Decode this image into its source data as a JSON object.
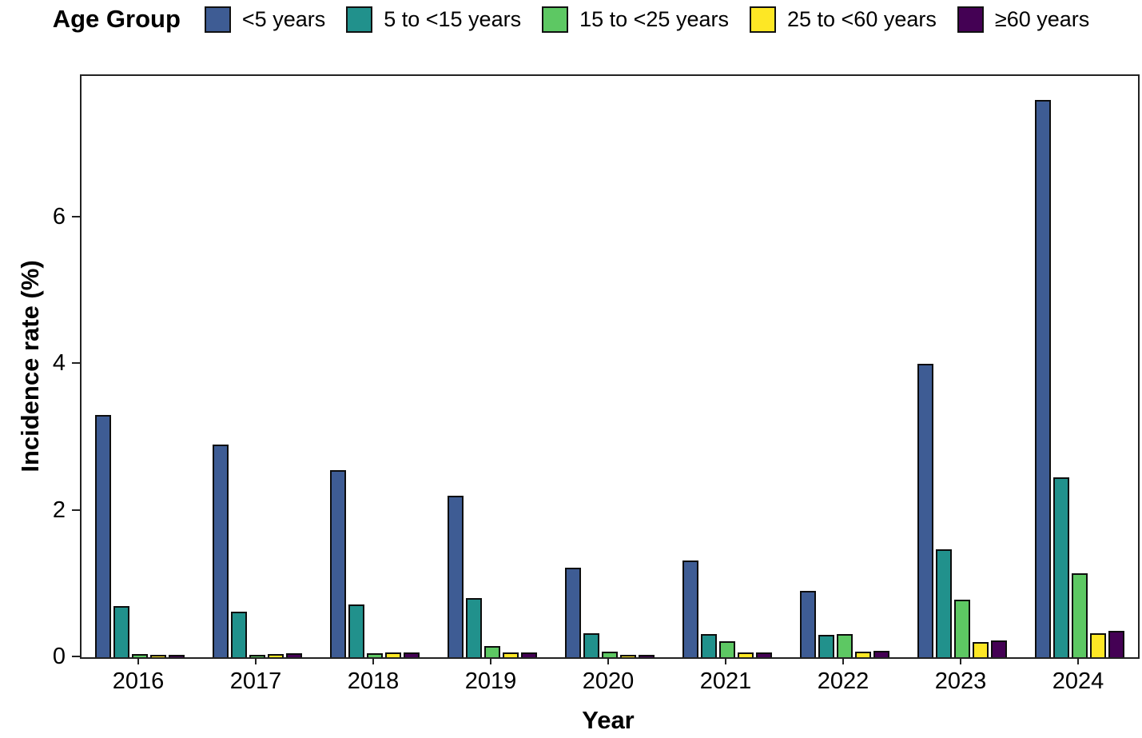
{
  "legend": {
    "title": "Age Group",
    "items": [
      {
        "label": "<5 years",
        "color": "#3E5C94"
      },
      {
        "label": "5 to <15 years",
        "color": "#21918C"
      },
      {
        "label": "15 to <25 years",
        "color": "#5DC863"
      },
      {
        "label": "25 to <60 years",
        "color": "#FDE725"
      },
      {
        "label": "≥60 years",
        "color": "#440154"
      }
    ]
  },
  "chart_data": {
    "type": "bar",
    "title": "",
    "xlabel": "Year",
    "ylabel": "Incidence rate (%)",
    "categories": [
      "2016",
      "2017",
      "2018",
      "2019",
      "2020",
      "2021",
      "2022",
      "2023",
      "2024"
    ],
    "series": [
      {
        "name": "<5 years",
        "color": "#3E5C94",
        "values": [
          3.3,
          2.9,
          2.55,
          2.2,
          1.22,
          1.32,
          0.9,
          4.0,
          7.6
        ]
      },
      {
        "name": "5 to <15 years",
        "color": "#21918C",
        "values": [
          0.7,
          0.62,
          0.72,
          0.81,
          0.33,
          0.32,
          0.3,
          1.47,
          2.45
        ]
      },
      {
        "name": "15 to <25 years",
        "color": "#5DC863",
        "values": [
          0.04,
          0.03,
          0.05,
          0.15,
          0.08,
          0.22,
          0.32,
          0.78,
          1.15
        ]
      },
      {
        "name": "25 to <60 years",
        "color": "#FDE725",
        "values": [
          0.03,
          0.04,
          0.06,
          0.07,
          0.02,
          0.06,
          0.08,
          0.21,
          0.33
        ]
      },
      {
        "name": "≥60 years",
        "color": "#440154",
        "values": [
          0.03,
          0.05,
          0.07,
          0.07,
          0.03,
          0.06,
          0.09,
          0.23,
          0.36
        ]
      }
    ],
    "y_ticks": [
      0,
      2,
      4,
      6
    ],
    "ylim": [
      0,
      7.93
    ],
    "grid": false,
    "legend_position": "top",
    "bar_outline_color": "#0d0d0d",
    "axis_color": "#222222"
  }
}
